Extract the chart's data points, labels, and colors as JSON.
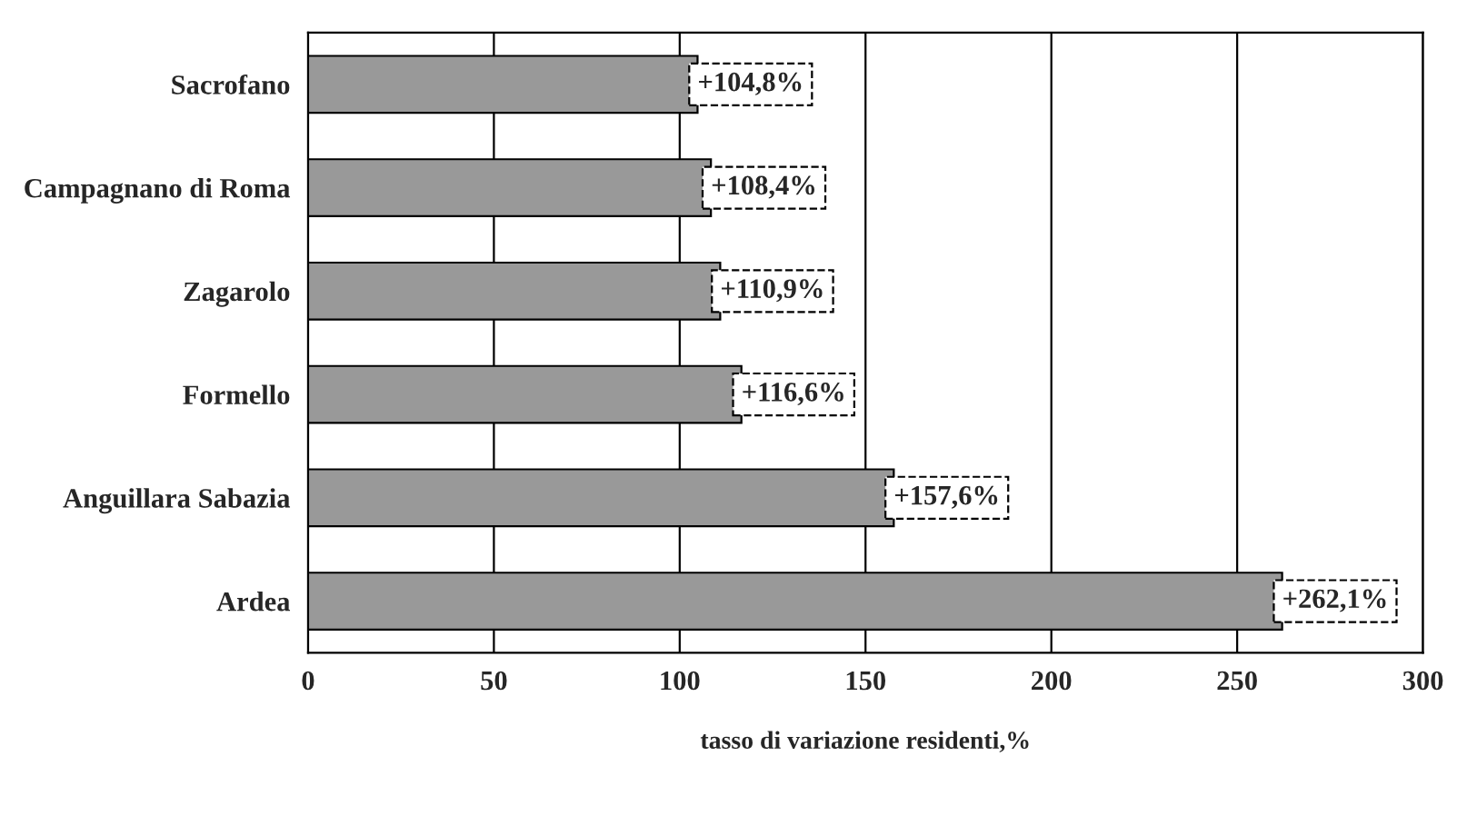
{
  "chart_data": {
    "type": "bar",
    "orientation": "horizontal",
    "xlabel": "tasso di variazione residenti,%",
    "categories": [
      "Sacrofano",
      "Campagnano di Roma",
      "Zagarolo",
      "Formello",
      "Anguillara Sabazia",
      "Ardea"
    ],
    "values": [
      104.8,
      108.4,
      110.9,
      116.6,
      157.6,
      262.1
    ],
    "value_labels": [
      "+104,8%",
      "+108,4%",
      "+110,9%",
      "+116,6%",
      "+157,6%",
      "+262,1%"
    ],
    "color": "#999999",
    "xlim": [
      0,
      300
    ],
    "xticks": [
      0,
      50,
      100,
      150,
      200,
      250,
      300
    ],
    "grid": "x",
    "legend": false
  }
}
